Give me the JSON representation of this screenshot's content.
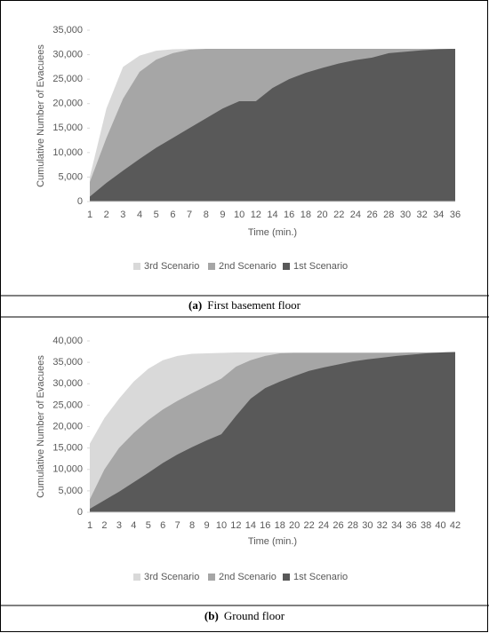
{
  "chart_data": [
    {
      "type": "area",
      "caption_label": "(a)",
      "caption": "First basement floor",
      "x_label": "Time (min.)",
      "y_label": "Cumulative Number of Evacuees",
      "categories": [
        "1",
        "2",
        "3",
        "4",
        "5",
        "6",
        "7",
        "8",
        "9",
        "10",
        "12",
        "14",
        "16",
        "18",
        "20",
        "22",
        "24",
        "26",
        "28",
        "30",
        "32",
        "34",
        "36"
      ],
      "ylim": [
        0,
        35000
      ],
      "yticks": [
        0,
        {
          "value": 5000,
          "label": "5,000"
        },
        {
          "value": 10000,
          "label": "10,000"
        },
        {
          "value": 15000,
          "label": "15,000"
        },
        {
          "value": 20000,
          "label": "20,000"
        },
        {
          "value": 25000,
          "label": "25,000"
        },
        {
          "value": 30000,
          "label": "30,000"
        },
        {
          "value": 35000,
          "label": "35,000"
        }
      ],
      "legend": "bottom",
      "series": [
        {
          "name": "3rd Scenario",
          "color": "#d9d9d9",
          "values": [
            5000,
            19000,
            27500,
            29800,
            30800,
            31100,
            31200,
            31200,
            31200,
            31200,
            31200,
            31200,
            31200,
            31200,
            31200,
            31200,
            31200,
            31200,
            31200,
            31200,
            31200,
            31200,
            31200
          ]
        },
        {
          "name": "2nd Scenario",
          "color": "#a6a6a6",
          "values": [
            4000,
            13000,
            21000,
            26500,
            29000,
            30300,
            31000,
            31200,
            31200,
            31200,
            31200,
            31200,
            31200,
            31200,
            31200,
            31200,
            31200,
            31200,
            31200,
            31200,
            31200,
            31200,
            31200
          ]
        },
        {
          "name": "1st Scenario",
          "color": "#595959",
          "values": [
            1000,
            3800,
            6300,
            8700,
            11000,
            13000,
            15000,
            17000,
            19000,
            20500,
            20500,
            23200,
            25000,
            26300,
            27300,
            28200,
            28900,
            29400,
            30300,
            30600,
            30900,
            31100,
            31200
          ]
        }
      ]
    },
    {
      "type": "area",
      "caption_label": "(b)",
      "caption": "Ground floor",
      "x_label": "Time (min.)",
      "y_label": "Cumulative Number of Evacuees",
      "categories": [
        "1",
        "2",
        "3",
        "4",
        "5",
        "6",
        "7",
        "8",
        "9",
        "10",
        "12",
        "14",
        "16",
        "18",
        "20",
        "22",
        "24",
        "26",
        "28",
        "30",
        "32",
        "34",
        "36",
        "38",
        "40",
        "42"
      ],
      "ylim": [
        0,
        40000
      ],
      "yticks": [
        0,
        {
          "value": 5000,
          "label": "5,000"
        },
        {
          "value": 10000,
          "label": "10,000"
        },
        {
          "value": 15000,
          "label": "15,000"
        },
        {
          "value": 20000,
          "label": "20,000"
        },
        {
          "value": 25000,
          "label": "25,000"
        },
        {
          "value": 30000,
          "label": "30,000"
        },
        {
          "value": 35000,
          "label": "35,000"
        },
        {
          "value": 40000,
          "label": "40,000"
        }
      ],
      "legend": "bottom",
      "series": [
        {
          "name": "3rd Scenario",
          "color": "#d9d9d9",
          "values": [
            16000,
            22000,
            26500,
            30500,
            33500,
            35500,
            36500,
            37000,
            37100,
            37200,
            37300,
            37300,
            37300,
            37300,
            37300,
            37300,
            37300,
            37300,
            37300,
            37300,
            37300,
            37300,
            37300,
            37300,
            37300,
            37400
          ]
        },
        {
          "name": "2nd Scenario",
          "color": "#a6a6a6",
          "values": [
            3000,
            10000,
            15000,
            18500,
            21500,
            24000,
            26000,
            27800,
            29500,
            31200,
            34000,
            35500,
            36500,
            37100,
            37200,
            37200,
            37200,
            37200,
            37200,
            37200,
            37200,
            37200,
            37300,
            37300,
            37300,
            37400
          ]
        },
        {
          "name": "1st Scenario",
          "color": "#595959",
          "values": [
            800,
            2800,
            4800,
            7000,
            9200,
            11500,
            13500,
            15200,
            16800,
            18200,
            22500,
            26500,
            29000,
            30500,
            31800,
            33000,
            33800,
            34500,
            35200,
            35700,
            36100,
            36500,
            36800,
            37100,
            37300,
            37400
          ]
        }
      ]
    }
  ]
}
